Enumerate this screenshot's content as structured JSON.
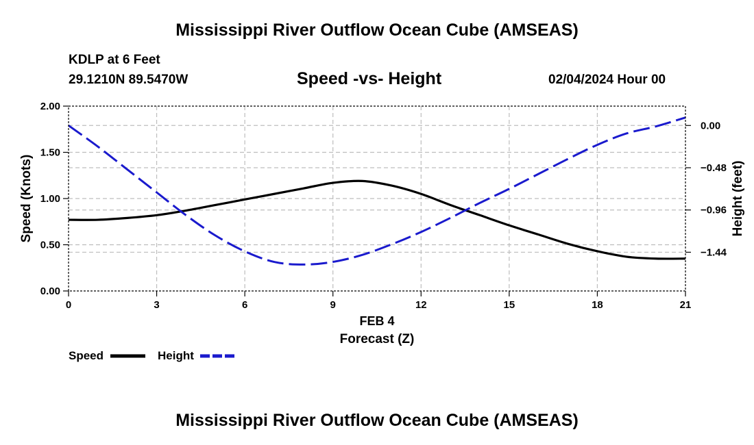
{
  "header": {
    "title": "Mississippi River Outflow Ocean Cube (AMSEAS)",
    "station": "KDLP at 6 Feet",
    "coords": "29.1210N  89.5470W",
    "datetime": "02/04/2024 Hour 00"
  },
  "footer": {
    "title": "Mississippi River Outflow Ocean Cube (AMSEAS)"
  },
  "legend": {
    "speed_label": "Speed",
    "height_label": "Height"
  },
  "colors": {
    "speed": "#000000",
    "height": "#1a1acd",
    "grid": "#bdbdbd"
  },
  "chart_data": {
    "type": "line",
    "title": "Speed -vs- Height",
    "xlabel": "Forecast (Z)",
    "xsublabel": "FEB 4",
    "ylabel": "Speed (Knots)",
    "y2label": "Height (feet)",
    "xlim": [
      0,
      21
    ],
    "ylim": [
      0,
      2
    ],
    "y2lim": [
      -1.88,
      0.22
    ],
    "xticks": [
      0,
      3,
      6,
      9,
      12,
      15,
      18,
      21
    ],
    "xtick_labels": [
      "0",
      "3",
      "6",
      "9",
      "12",
      "15",
      "18",
      "21"
    ],
    "yticks": [
      0,
      0.5,
      1,
      1.5,
      2
    ],
    "ytick_labels": [
      "0.00",
      "0.50",
      "1.00",
      "1.50",
      "2.00"
    ],
    "y2ticks": [
      0,
      -0.48,
      -0.96,
      -1.44
    ],
    "y2tick_labels": [
      "0.00",
      "−0.48",
      "−0.96",
      "−1.44"
    ],
    "series": [
      {
        "name": "Speed",
        "axis": "left",
        "style": "solid",
        "x": [
          0,
          1,
          2,
          3,
          4,
          5,
          6,
          7,
          8,
          9,
          10,
          11,
          12,
          13,
          14,
          15,
          16,
          17,
          18,
          19,
          20,
          21
        ],
        "values": [
          0.77,
          0.77,
          0.79,
          0.82,
          0.87,
          0.93,
          0.99,
          1.05,
          1.11,
          1.17,
          1.19,
          1.14,
          1.05,
          0.93,
          0.82,
          0.71,
          0.61,
          0.51,
          0.43,
          0.37,
          0.35,
          0.35
        ]
      },
      {
        "name": "Height",
        "axis": "right",
        "style": "dashed",
        "x": [
          0,
          1,
          2,
          3,
          4,
          5,
          6,
          7,
          8,
          9,
          10,
          11,
          12,
          13,
          14,
          15,
          16,
          17,
          18,
          19,
          20,
          21
        ],
        "values": [
          0.0,
          -0.24,
          -0.5,
          -0.76,
          -1.02,
          -1.25,
          -1.43,
          -1.55,
          -1.58,
          -1.55,
          -1.47,
          -1.35,
          -1.21,
          -1.05,
          -0.88,
          -0.72,
          -0.55,
          -0.38,
          -0.22,
          -0.09,
          -0.01,
          0.09
        ]
      }
    ]
  }
}
